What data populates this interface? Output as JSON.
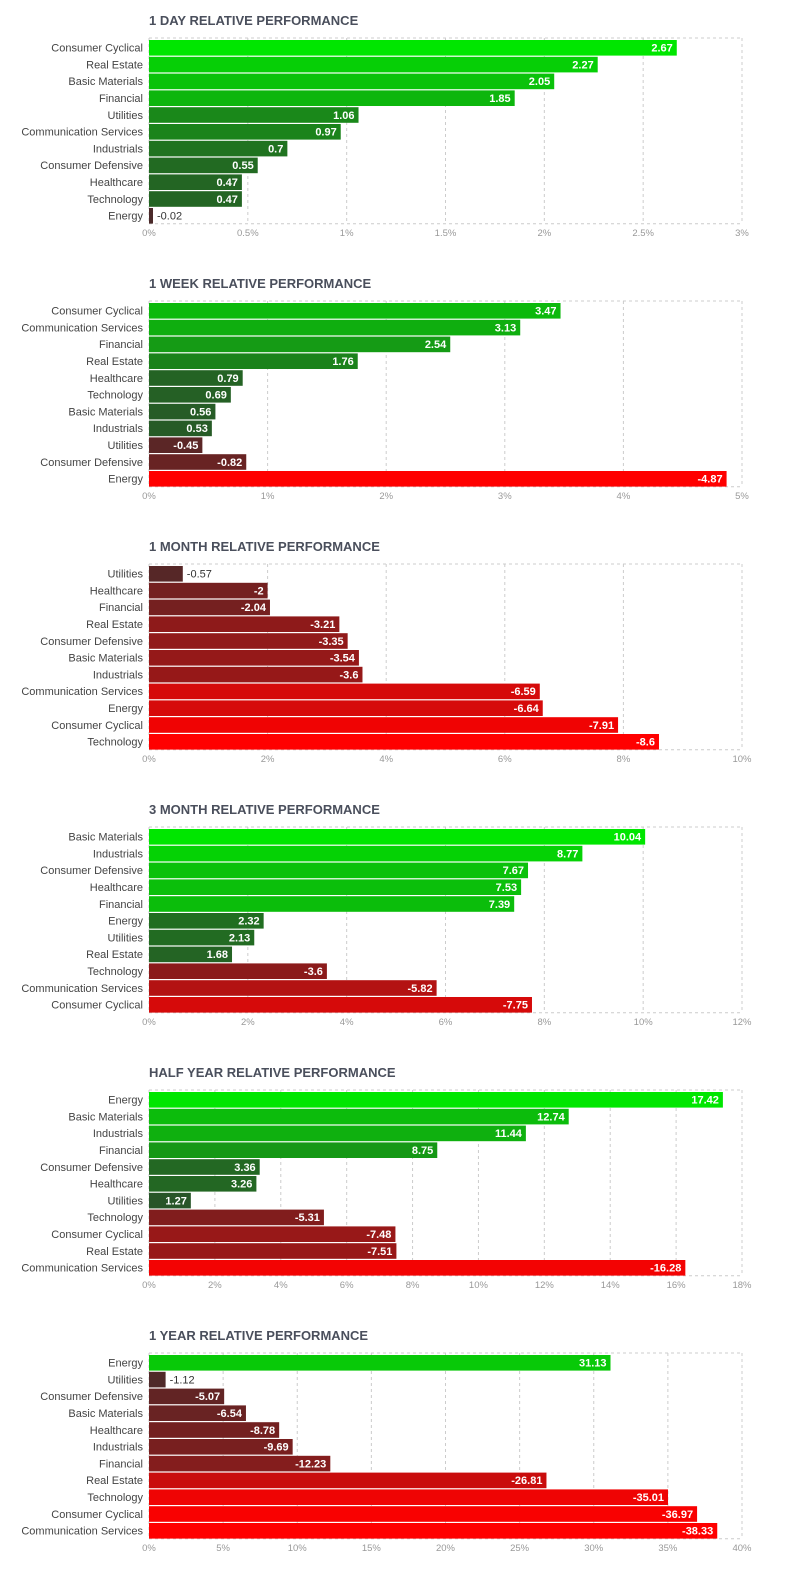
{
  "chart_data": [
    {
      "type": "bar",
      "orientation": "horizontal",
      "title": "1 DAY RELATIVE PERFORMANCE",
      "categories": [
        "Consumer Cyclical",
        "Real Estate",
        "Basic Materials",
        "Financial",
        "Utilities",
        "Communication Services",
        "Industrials",
        "Consumer Defensive",
        "Healthcare",
        "Technology",
        "Energy"
      ],
      "values": [
        2.67,
        2.27,
        2.05,
        1.85,
        1.06,
        0.97,
        0.7,
        0.55,
        0.47,
        0.47,
        -0.02
      ],
      "value_labels": [
        "2.67",
        "2.27",
        "2.05",
        "1.85",
        "1.06",
        "0.97",
        "0.7",
        "0.55",
        "0.47",
        "0.47",
        "-0.02"
      ],
      "xlim": [
        0,
        3
      ],
      "ticks": [
        "0%",
        "0.5%",
        "1%",
        "1.5%",
        "2%",
        "2.5%",
        "3%"
      ],
      "grid": true
    },
    {
      "type": "bar",
      "orientation": "horizontal",
      "title": "1 WEEK RELATIVE PERFORMANCE",
      "categories": [
        "Consumer Cyclical",
        "Communication Services",
        "Financial",
        "Real Estate",
        "Healthcare",
        "Technology",
        "Basic Materials",
        "Industrials",
        "Utilities",
        "Consumer Defensive",
        "Energy"
      ],
      "values": [
        3.47,
        3.13,
        2.54,
        1.76,
        0.79,
        0.69,
        0.56,
        0.53,
        -0.45,
        -0.82,
        -4.87
      ],
      "value_labels": [
        "3.47",
        "3.13",
        "2.54",
        "1.76",
        "0.79",
        "0.69",
        "0.56",
        "0.53",
        "-0.45",
        "-0.82",
        "-4.87"
      ],
      "xlim": [
        0,
        5
      ],
      "ticks": [
        "0%",
        "1%",
        "2%",
        "3%",
        "4%",
        "5%"
      ],
      "grid": true
    },
    {
      "type": "bar",
      "orientation": "horizontal",
      "title": "1 MONTH RELATIVE PERFORMANCE",
      "categories": [
        "Utilities",
        "Healthcare",
        "Financial",
        "Real Estate",
        "Consumer Defensive",
        "Basic Materials",
        "Industrials",
        "Communication Services",
        "Energy",
        "Consumer Cyclical",
        "Technology"
      ],
      "values": [
        -0.57,
        -2,
        -2.04,
        -3.21,
        -3.35,
        -3.54,
        -3.6,
        -6.59,
        -6.64,
        -7.91,
        -8.6
      ],
      "value_labels": [
        "-0.57",
        "-2",
        "-2.04",
        "-3.21",
        "-3.35",
        "-3.54",
        "-3.6",
        "-6.59",
        "-6.64",
        "-7.91",
        "-8.6"
      ],
      "xlim": [
        0,
        10
      ],
      "ticks": [
        "0%",
        "2%",
        "4%",
        "6%",
        "8%",
        "10%"
      ],
      "grid": true
    },
    {
      "type": "bar",
      "orientation": "horizontal",
      "title": "3 MONTH RELATIVE PERFORMANCE",
      "categories": [
        "Basic Materials",
        "Industrials",
        "Consumer Defensive",
        "Healthcare",
        "Financial",
        "Energy",
        "Utilities",
        "Real Estate",
        "Technology",
        "Communication Services",
        "Consumer Cyclical"
      ],
      "values": [
        10.04,
        8.77,
        7.67,
        7.53,
        7.39,
        2.32,
        2.13,
        1.68,
        -3.6,
        -5.82,
        -7.75
      ],
      "value_labels": [
        "10.04",
        "8.77",
        "7.67",
        "7.53",
        "7.39",
        "2.32",
        "2.13",
        "1.68",
        "-3.6",
        "-5.82",
        "-7.75"
      ],
      "xlim": [
        0,
        12
      ],
      "ticks": [
        "0%",
        "2%",
        "4%",
        "6%",
        "8%",
        "10%",
        "12%"
      ],
      "grid": true
    },
    {
      "type": "bar",
      "orientation": "horizontal",
      "title": "HALF YEAR RELATIVE PERFORMANCE",
      "categories": [
        "Energy",
        "Basic Materials",
        "Industrials",
        "Financial",
        "Consumer Defensive",
        "Healthcare",
        "Utilities",
        "Technology",
        "Consumer Cyclical",
        "Real Estate",
        "Communication Services"
      ],
      "values": [
        17.42,
        12.74,
        11.44,
        8.75,
        3.36,
        3.26,
        1.27,
        -5.31,
        -7.48,
        -7.51,
        -16.28
      ],
      "value_labels": [
        "17.42",
        "12.74",
        "11.44",
        "8.75",
        "3.36",
        "3.26",
        "1.27",
        "-5.31",
        "-7.48",
        "-7.51",
        "-16.28"
      ],
      "xlim": [
        0,
        18
      ],
      "ticks": [
        "0%",
        "2%",
        "4%",
        "6%",
        "8%",
        "10%",
        "12%",
        "14%",
        "16%",
        "18%"
      ],
      "grid": true
    },
    {
      "type": "bar",
      "orientation": "horizontal",
      "title": "1 YEAR RELATIVE PERFORMANCE",
      "categories": [
        "Energy",
        "Utilities",
        "Consumer Defensive",
        "Basic Materials",
        "Healthcare",
        "Industrials",
        "Financial",
        "Real Estate",
        "Technology",
        "Consumer Cyclical",
        "Communication Services"
      ],
      "values": [
        31.13,
        -1.12,
        -5.07,
        -6.54,
        -8.78,
        -9.69,
        -12.23,
        -26.81,
        -35.01,
        -36.97,
        -38.33
      ],
      "value_labels": [
        "31.13",
        "-1.12",
        "-5.07",
        "-6.54",
        "-8.78",
        "-9.69",
        "-12.23",
        "-26.81",
        "-35.01",
        "-36.97",
        "-38.33"
      ],
      "xlim": [
        0,
        40
      ],
      "ticks": [
        "0%",
        "5%",
        "10%",
        "15%",
        "20%",
        "25%",
        "30%",
        "35%",
        "40%"
      ],
      "grid": true
    }
  ],
  "colors": {
    "title": "#4a4f5c",
    "label": "#444444",
    "tick": "#999999",
    "grid": "#cccccc",
    "pos_light": "#00e600",
    "pos_dark": "#2b4a2b",
    "neg_light": "#ff0000",
    "neg_dark": "#4a2a2a",
    "value_text_inside": "#ffffff",
    "value_text_outside": "#333333"
  }
}
